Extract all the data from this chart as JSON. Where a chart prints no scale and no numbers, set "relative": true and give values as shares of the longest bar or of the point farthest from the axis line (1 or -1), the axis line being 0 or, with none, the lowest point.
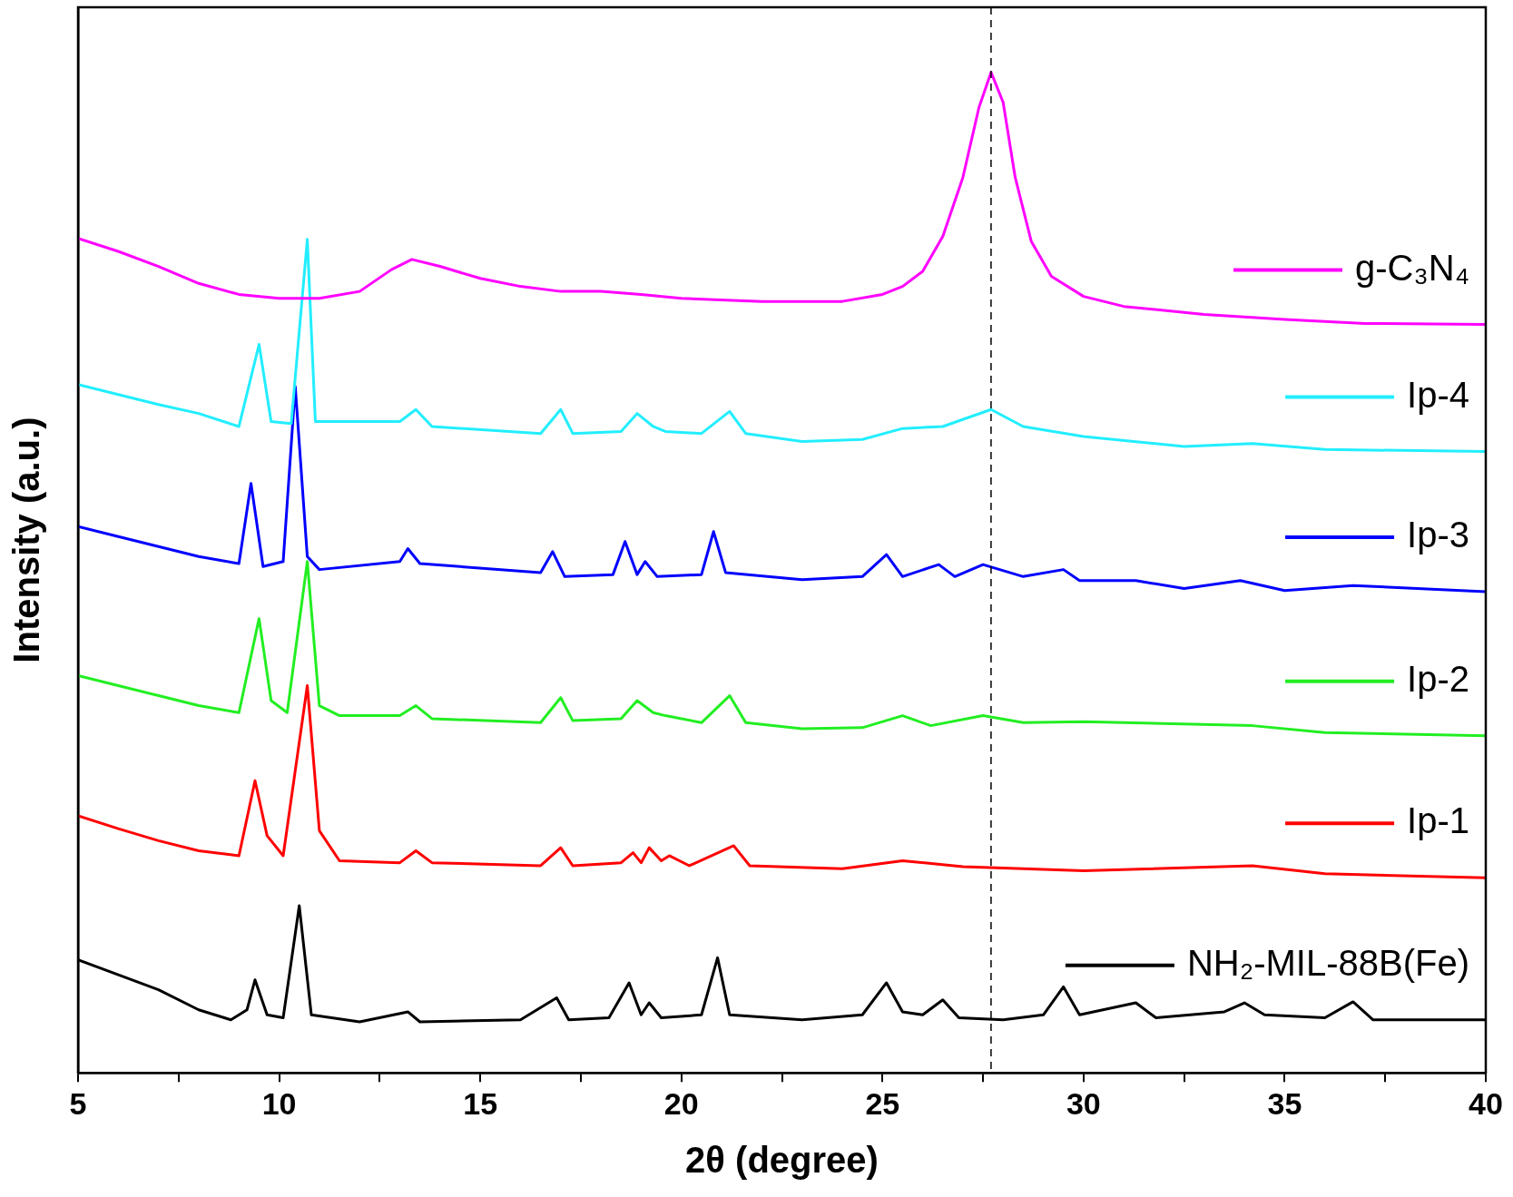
{
  "chart_data": {
    "type": "line",
    "xlabel": "2θ (degree)",
    "ylabel": "Intensity (a.u.)",
    "relative": true,
    "xlim": [
      5,
      40
    ],
    "xticks": [
      5,
      {
        "value": 7.5,
        "label": null
      },
      10,
      {
        "value": 12.5,
        "label": null
      },
      15,
      {
        "value": 17.5,
        "label": null
      },
      20,
      {
        "value": 22.5,
        "label": null
      },
      25,
      {
        "value": 27.5,
        "label": null
      },
      30,
      {
        "value": 32.5,
        "label": null
      },
      35,
      {
        "value": 37.5,
        "label": null
      },
      40
    ],
    "legend": "right",
    "grid": false,
    "ref_lines": [
      {
        "axis": "x",
        "value": 27.7,
        "color": "#000000",
        "line_style": "dashed"
      }
    ],
    "series": [
      {
        "name": "g-C₃N₄",
        "color": "#ff00ff",
        "x": [
          5,
          6,
          7,
          8,
          9,
          10,
          11,
          12,
          12.8,
          13.3,
          14,
          15,
          16,
          17,
          18,
          19,
          20,
          22,
          24,
          25,
          25.5,
          26,
          26.5,
          27,
          27.4,
          27.7,
          28,
          28.3,
          28.7,
          29.2,
          30,
          31,
          33,
          35,
          37,
          40
        ],
        "values": [
          0.834,
          0.821,
          0.806,
          0.789,
          0.778,
          0.774,
          0.774,
          0.781,
          0.803,
          0.813,
          0.806,
          0.794,
          0.786,
          0.781,
          0.781,
          0.778,
          0.774,
          0.771,
          0.771,
          0.778,
          0.786,
          0.801,
          0.836,
          0.895,
          0.965,
          1.0,
          0.97,
          0.895,
          0.831,
          0.796,
          0.776,
          0.766,
          0.758,
          0.753,
          0.749,
          0.748
        ]
      },
      {
        "name": "Ip-4",
        "color": "#22eeff",
        "x": [
          5,
          6,
          7,
          8,
          9,
          9.5,
          9.8,
          10.3,
          10.7,
          10.9,
          11.5,
          13,
          13.4,
          13.8,
          16.5,
          17,
          17.3,
          18.5,
          18.9,
          19.3,
          19.6,
          20.5,
          21.2,
          21.6,
          23,
          24.5,
          25.5,
          26.5,
          27.7,
          28.5,
          30,
          32.5,
          34.2,
          36,
          40
        ],
        "values": [
          0.688,
          0.678,
          0.668,
          0.659,
          0.646,
          0.728,
          0.651,
          0.649,
          0.833,
          0.651,
          0.651,
          0.651,
          0.663,
          0.646,
          0.639,
          0.663,
          0.639,
          0.641,
          0.659,
          0.646,
          0.641,
          0.639,
          0.661,
          0.639,
          0.631,
          0.633,
          0.644,
          0.646,
          0.663,
          0.646,
          0.636,
          0.626,
          0.629,
          0.623,
          0.621
        ]
      },
      {
        "name": "Ip-3",
        "color": "#0000ff",
        "x": [
          5,
          6,
          7,
          8,
          9,
          9.3,
          9.6,
          10.1,
          10.4,
          10.7,
          11,
          13,
          13.2,
          13.5,
          16.5,
          16.8,
          17.1,
          18.3,
          18.6,
          18.9,
          19.1,
          19.4,
          20.5,
          20.8,
          21.1,
          23,
          24.5,
          25.1,
          25.5,
          26.4,
          26.8,
          27.5,
          28.5,
          29.5,
          29.9,
          31.3,
          32.5,
          33.9,
          35,
          36.7,
          40
        ],
        "values": [
          0.546,
          0.536,
          0.526,
          0.516,
          0.509,
          0.589,
          0.506,
          0.511,
          0.686,
          0.516,
          0.503,
          0.511,
          0.524,
          0.509,
          0.5,
          0.521,
          0.496,
          0.498,
          0.531,
          0.498,
          0.511,
          0.496,
          0.498,
          0.541,
          0.5,
          0.493,
          0.496,
          0.518,
          0.496,
          0.508,
          0.496,
          0.508,
          0.496,
          0.503,
          0.492,
          0.492,
          0.484,
          0.492,
          0.482,
          0.487,
          0.481
        ]
      },
      {
        "name": "Ip-2",
        "color": "#22ee22",
        "x": [
          5,
          6,
          7,
          8,
          9,
          9.5,
          9.8,
          10.2,
          10.7,
          11,
          11.5,
          13,
          13.4,
          13.8,
          16.5,
          17,
          17.3,
          18.5,
          18.9,
          19.3,
          19.6,
          20.5,
          21.2,
          21.6,
          23,
          24.5,
          25.5,
          26.2,
          27.5,
          28.5,
          30,
          34.2,
          36,
          40
        ],
        "values": [
          0.397,
          0.387,
          0.377,
          0.367,
          0.36,
          0.454,
          0.372,
          0.36,
          0.511,
          0.367,
          0.357,
          0.357,
          0.367,
          0.354,
          0.35,
          0.375,
          0.352,
          0.354,
          0.372,
          0.36,
          0.357,
          0.35,
          0.377,
          0.35,
          0.344,
          0.345,
          0.357,
          0.347,
          0.357,
          0.35,
          0.351,
          0.347,
          0.34,
          0.337
        ]
      },
      {
        "name": "Ip-1",
        "color": "#ff0000",
        "x": [
          5,
          6,
          7,
          8,
          9,
          9.4,
          9.7,
          10.1,
          10.7,
          11,
          11.5,
          13,
          13.4,
          13.8,
          16.5,
          17,
          17.3,
          18.5,
          18.8,
          19,
          19.2,
          19.5,
          19.7,
          20.2,
          21.3,
          21.7,
          24,
          25.5,
          27,
          30,
          34.2,
          36,
          40
        ],
        "values": [
          0.257,
          0.244,
          0.232,
          0.222,
          0.217,
          0.292,
          0.237,
          0.217,
          0.387,
          0.242,
          0.212,
          0.21,
          0.222,
          0.21,
          0.207,
          0.225,
          0.207,
          0.21,
          0.22,
          0.21,
          0.225,
          0.212,
          0.217,
          0.207,
          0.227,
          0.207,
          0.204,
          0.212,
          0.206,
          0.202,
          0.207,
          0.199,
          0.195
        ]
      },
      {
        "name": "NH₂-MIL-88B(Fe)",
        "color": "#000000",
        "x": [
          5,
          6,
          7,
          8,
          8.8,
          9.2,
          9.4,
          9.7,
          10.1,
          10.5,
          10.8,
          12,
          13.2,
          13.5,
          16,
          16.9,
          17.2,
          18.2,
          18.7,
          19,
          19.2,
          19.5,
          20.5,
          20.9,
          21.2,
          23,
          24.5,
          25.1,
          25.5,
          26,
          26.5,
          26.9,
          28,
          29,
          29.5,
          29.9,
          31.3,
          31.8,
          33.5,
          34,
          34.5,
          36,
          36.7,
          37.2,
          40
        ],
        "values": [
          0.113,
          0.098,
          0.083,
          0.063,
          0.053,
          0.063,
          0.093,
          0.058,
          0.055,
          0.167,
          0.058,
          0.051,
          0.061,
          0.051,
          0.053,
          0.075,
          0.053,
          0.055,
          0.09,
          0.058,
          0.07,
          0.055,
          0.058,
          0.115,
          0.058,
          0.053,
          0.058,
          0.09,
          0.061,
          0.058,
          0.073,
          0.055,
          0.053,
          0.058,
          0.086,
          0.058,
          0.07,
          0.055,
          0.061,
          0.07,
          0.058,
          0.055,
          0.071,
          0.053,
          0.053
        ]
      }
    ]
  }
}
